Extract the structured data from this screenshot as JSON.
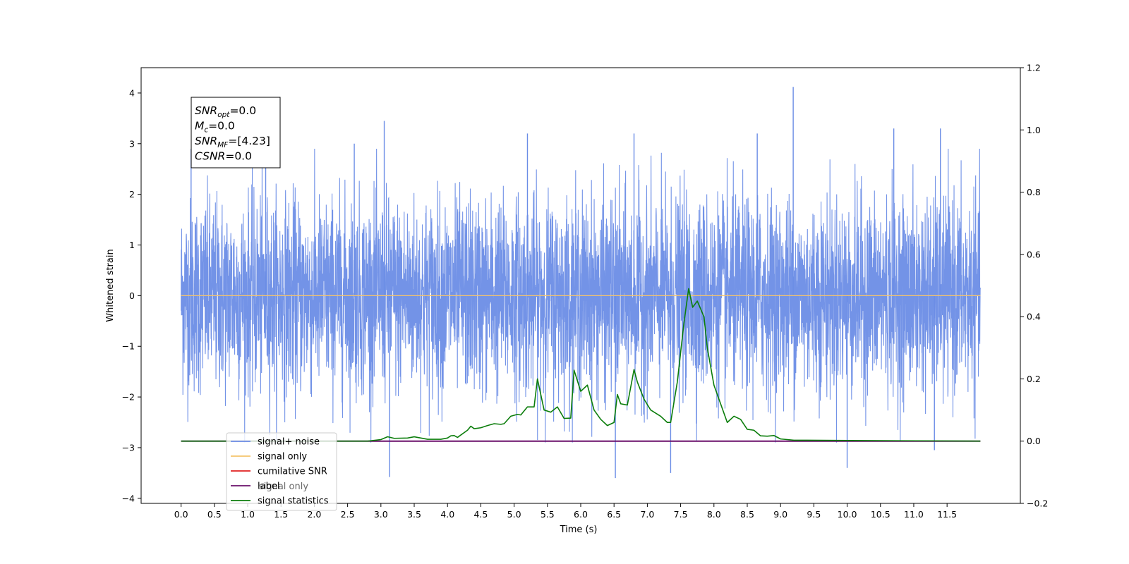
{
  "chart_data": {
    "type": "line",
    "xlabel": "Time (s)",
    "ylabel": "Whitened strain",
    "xlim": [
      -0.6,
      12.6
    ],
    "ylim": [
      -4.1,
      4.5
    ],
    "y2lim": [
      -0.2,
      1.2
    ],
    "x_ticks": [
      "0.0",
      "0.5",
      "1.0",
      "1.5",
      "2.0",
      "2.5",
      "3.0",
      "3.5",
      "4.0",
      "4.5",
      "5.0",
      "5.5",
      "6.0",
      "6.5",
      "7.0",
      "7.5",
      "8.0",
      "8.5",
      "9.0",
      "9.5",
      "10.0",
      "10.5",
      "11.0",
      "11.5"
    ],
    "y_ticks": [
      "4",
      "3",
      "2",
      "1",
      "0",
      "−1",
      "−2",
      "−3",
      "−4"
    ],
    "y2_ticks": [
      "1.2",
      "1.0",
      "0.8",
      "0.6",
      "0.4",
      "0.2",
      "0.0",
      "−0.2"
    ],
    "grid": false,
    "legend_position": "lower-left",
    "series": [
      {
        "name": "signal+ noise",
        "color": "#6b8de6",
        "axis": "left",
        "description_range": [
          0.0,
          12.0
        ],
        "typical_band": [
          -2.2,
          2.2
        ],
        "peaks": [
          {
            "x": 3.05,
            "y": 3.45
          },
          {
            "x": 9.19,
            "y": 4.12
          },
          {
            "x": 6.52,
            "y": -3.6
          },
          {
            "x": 3.13,
            "y": -3.58
          },
          {
            "x": 7.35,
            "y": -3.5
          },
          {
            "x": 10.0,
            "y": -3.4
          },
          {
            "x": 1.27,
            "y": 3.3
          },
          {
            "x": 10.7,
            "y": 3.3
          },
          {
            "x": 11.4,
            "y": 3.3
          },
          {
            "x": 8.65,
            "y": 3.2
          },
          {
            "x": 11.31,
            "y": -3.05
          },
          {
            "x": 2.6,
            "y": 3.0
          },
          {
            "x": 5.2,
            "y": 3.2
          },
          {
            "x": 6.8,
            "y": 3.2
          },
          {
            "x": 0.15,
            "y": 2.9
          }
        ]
      },
      {
        "name": "signal only",
        "color": "#f5c46b",
        "axis": "left",
        "x": [
          0.0,
          12.0
        ],
        "values": [
          0.0,
          0.0
        ]
      },
      {
        "name": "cumilative SNR",
        "color": "#e02020",
        "axis": "right",
        "x": [
          0.0,
          12.0
        ],
        "values": [
          0.0,
          0.0
        ]
      },
      {
        "name": "label",
        "color": "#6a0f6a",
        "axis": "right",
        "x": [
          0.0,
          12.0
        ],
        "values": [
          0.0,
          0.0
        ]
      },
      {
        "name": "signal statistics",
        "color": "#0b7d0b",
        "axis": "right",
        "x": [
          0.0,
          2.8,
          3.0,
          3.1,
          3.2,
          3.4,
          3.5,
          3.7,
          3.9,
          4.0,
          4.05,
          4.1,
          4.15,
          4.3,
          4.35,
          4.4,
          4.5,
          4.6,
          4.7,
          4.8,
          4.85,
          4.95,
          5.05,
          5.1,
          5.2,
          5.3,
          5.35,
          5.45,
          5.55,
          5.65,
          5.75,
          5.85,
          5.9,
          6.0,
          6.1,
          6.2,
          6.3,
          6.4,
          6.5,
          6.55,
          6.6,
          6.7,
          6.8,
          6.85,
          6.95,
          7.05,
          7.2,
          7.3,
          7.35,
          7.45,
          7.55,
          7.62,
          7.68,
          7.75,
          7.85,
          7.9,
          8.0,
          8.1,
          8.2,
          8.3,
          8.4,
          8.5,
          8.6,
          8.7,
          8.8,
          8.9,
          9.0,
          9.1,
          9.2,
          12.0
        ],
        "values": [
          0.0,
          0.0,
          0.005,
          0.014,
          0.009,
          0.01,
          0.014,
          0.006,
          0.006,
          0.01,
          0.017,
          0.018,
          0.012,
          0.035,
          0.048,
          0.04,
          0.043,
          0.05,
          0.056,
          0.054,
          0.056,
          0.08,
          0.086,
          0.084,
          0.11,
          0.11,
          0.2,
          0.1,
          0.093,
          0.11,
          0.073,
          0.074,
          0.228,
          0.16,
          0.18,
          0.1,
          0.07,
          0.05,
          0.06,
          0.15,
          0.12,
          0.116,
          0.23,
          0.19,
          0.135,
          0.1,
          0.08,
          0.06,
          0.06,
          0.19,
          0.38,
          0.49,
          0.43,
          0.45,
          0.4,
          0.3,
          0.18,
          0.12,
          0.06,
          0.08,
          0.07,
          0.038,
          0.035,
          0.017,
          0.016,
          0.018,
          0.007,
          0.005,
          0.003,
          0.0
        ]
      }
    ],
    "annotation_box": {
      "lines": [
        {
          "main": "SNR",
          "sub": "opt",
          "rest": "=0.0"
        },
        {
          "main": "M",
          "sub": "c",
          "rest": "=0.0"
        },
        {
          "main": "SNR",
          "sub": "MF",
          "rest": "=[4.23]"
        },
        {
          "main": "CSNR",
          "sub": "",
          "rest": "=0.0"
        }
      ]
    },
    "legend_items": [
      "signal+ noise",
      "signal only",
      "cumilative SNR",
      "label",
      "signal statistics"
    ],
    "legend_hidden_text": "signal only"
  }
}
